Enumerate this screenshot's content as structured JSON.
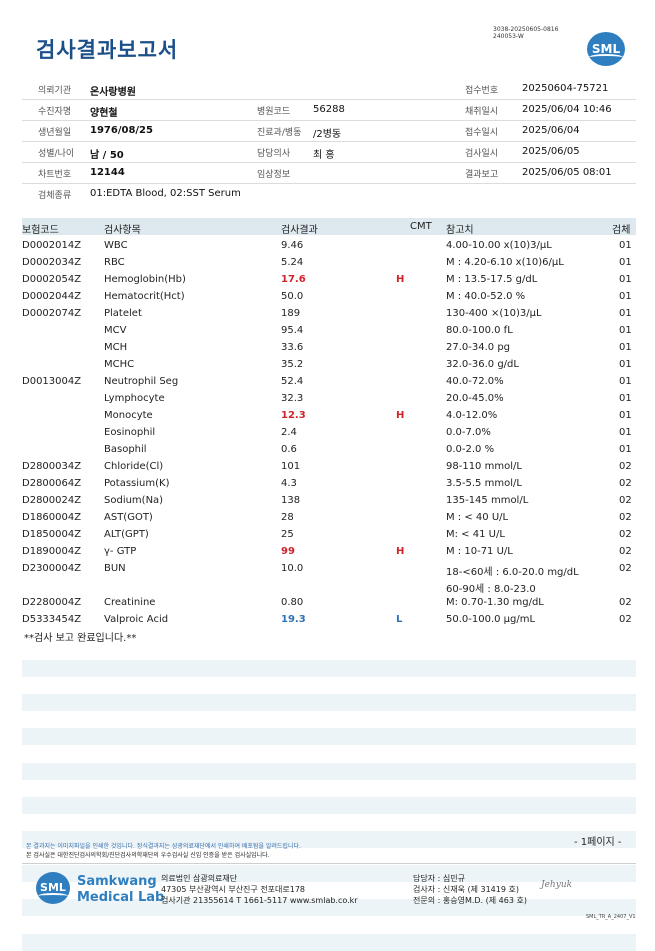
{
  "header": {
    "title": "검사결과보고서",
    "code_line1": "3038-20250605-0816",
    "code_line2": "240053-W",
    "logo_text": "SML"
  },
  "patient": {
    "institution_label": "의뢰기관",
    "institution": "온사랑병원",
    "receipt_no_label": "접수번호",
    "receipt_no": "20250604-75721",
    "name_label": "수진자명",
    "name": "양현철",
    "hospital_code_label": "병원코드",
    "hospital_code": "56288",
    "collect_date_label": "채취일시",
    "collect_date": "2025/06/04 10:46",
    "birth_label": "생년월일",
    "birth": "1976/08/25",
    "dept_label": "진료과/병동",
    "dept": "/2병동",
    "receipt_date_label": "접수일시",
    "receipt_date": "2025/06/04",
    "sex_age_label": "성별/나이",
    "sex_age": "남 / 50",
    "doctor_label": "담당의사",
    "doctor": "최 홍",
    "exam_date_label": "검사일시",
    "exam_date": "2025/06/05",
    "chart_label": "차트번호",
    "chart": "12144",
    "clinical_label": "임상정보",
    "clinical": "",
    "report_date_label": "결과보고",
    "report_date": "2025/06/05 08:01",
    "specimen_label": "검체종류",
    "specimen": "01:EDTA Blood, 02:SST Serum"
  },
  "table": {
    "headers": {
      "code": "보험코드",
      "name": "검사항목",
      "result": "검사결과",
      "cmt": "CMT",
      "ref": "참고치",
      "spec": "검체"
    },
    "rows": [
      {
        "code": "D0002014Z",
        "name": "WBC",
        "result": "9.46",
        "cmt": "",
        "ref": "4.00-10.00 x(10)3/μL",
        "spec": "01"
      },
      {
        "code": "D0002034Z",
        "name": "RBC",
        "result": "5.24",
        "cmt": "",
        "ref": "M : 4.20-6.10 x(10)6/μL",
        "spec": "01"
      },
      {
        "code": "D0002054Z",
        "name": "Hemoglobin(Hb)",
        "result": "17.6",
        "cmt": "H",
        "ref": "M : 13.5-17.5 g/dL",
        "spec": "01"
      },
      {
        "code": "D0002044Z",
        "name": "Hematocrit(Hct)",
        "result": "50.0",
        "cmt": "",
        "ref": "M : 40.0-52.0 %",
        "spec": "01"
      },
      {
        "code": "D0002074Z",
        "name": "Platelet",
        "result": "189",
        "cmt": "",
        "ref": "130-400 ×(10)3/μL",
        "spec": "01"
      },
      {
        "code": "",
        "name": "MCV",
        "result": "95.4",
        "cmt": "",
        "ref": "80.0-100.0 fL",
        "spec": "01"
      },
      {
        "code": "",
        "name": "MCH",
        "result": "33.6",
        "cmt": "",
        "ref": "27.0-34.0 pg",
        "spec": "01"
      },
      {
        "code": "",
        "name": "MCHC",
        "result": "35.2",
        "cmt": "",
        "ref": "32.0-36.0 g/dL",
        "spec": "01"
      },
      {
        "code": "D0013004Z",
        "name": "Neutrophil Seg",
        "result": "52.4",
        "cmt": "",
        "ref": "40.0-72.0%",
        "spec": "01"
      },
      {
        "code": "",
        "name": "Lymphocyte",
        "result": "32.3",
        "cmt": "",
        "ref": "20.0-45.0%",
        "spec": "01"
      },
      {
        "code": "",
        "name": "Monocyte",
        "result": "12.3",
        "cmt": "H",
        "ref": "4.0-12.0%",
        "spec": "01"
      },
      {
        "code": "",
        "name": "Eosinophil",
        "result": "2.4",
        "cmt": "",
        "ref": "0.0-7.0%",
        "spec": "01"
      },
      {
        "code": "",
        "name": "Basophil",
        "result": "0.6",
        "cmt": "",
        "ref": "0.0-2.0 %",
        "spec": "01"
      },
      {
        "code": "D2800034Z",
        "name": "Chloride(Cl)",
        "result": "101",
        "cmt": "",
        "ref": "98-110 mmol/L",
        "spec": "02"
      },
      {
        "code": "D2800064Z",
        "name": "Potassium(K)",
        "result": "4.3",
        "cmt": "",
        "ref": "3.5-5.5 mmol/L",
        "spec": "02"
      },
      {
        "code": "D2800024Z",
        "name": "Sodium(Na)",
        "result": "138",
        "cmt": "",
        "ref": "135-145 mmol/L",
        "spec": "02"
      },
      {
        "code": "D1860004Z",
        "name": "AST(GOT)",
        "result": "28",
        "cmt": "",
        "ref": "M : < 40 U/L",
        "spec": "02"
      },
      {
        "code": "D1850004Z",
        "name": "ALT(GPT)",
        "result": "25",
        "cmt": "",
        "ref": "M: < 41 U/L",
        "spec": "02"
      },
      {
        "code": "D1890004Z",
        "name": "γ- GTP",
        "result": "99",
        "cmt": "H",
        "ref": "M : 10-71 U/L",
        "spec": "02"
      },
      {
        "code": "D2300004Z",
        "name": "BUN",
        "result": "10.0",
        "cmt": "",
        "ref": "18-<60세 : 6.0-20.0 mg/dL",
        "spec": "02"
      },
      {
        "code": "",
        "name": "",
        "result": "",
        "cmt": "",
        "ref": "60-90세 : 8.0-23.0",
        "spec": ""
      },
      {
        "code": "D2280004Z",
        "name": "Creatinine",
        "result": "0.80",
        "cmt": "",
        "ref": "M: 0.70-1.30 mg/dL",
        "spec": "02"
      },
      {
        "code": "D5333454Z",
        "name": "Valproic Acid",
        "result": "19.3",
        "cmt": "L",
        "ref": "50.0-100.0 μg/mL",
        "spec": "02"
      }
    ],
    "complete_text": "**검사 보고 완료입니다.**"
  },
  "footer": {
    "page": "- 1페이지 -",
    "note1": "본 결과지는 이미지파일을 인쇄한 것입니다. 정식결과지는 삼광의료재단에서 인쇄하여 배포됨을 알려드립니다.",
    "note2": "본 검사실은 대한진단검사의학회/진단검사의학재단의 우수검사실 신임 인증을 받은 검사실입니다.",
    "brand_line1": "Samkwang",
    "brand_line2": "Medical Lab",
    "logo_text": "SML",
    "addr1": "의료법인 삼광의료재단",
    "addr2": "47305 부산광역시 부산진구 전포대로178",
    "addr3": "검사기관 21355614 T 1661-5117 www.smlab.co.kr",
    "staff1": "담당자 : 심민규",
    "staff2": "검사자 : 신재욱 (제 31419 호)",
    "staff3": "전문의 : 홍승영M.D. (제 463 호)",
    "signature": "Jehyuk",
    "form_code": "SML_TR_A_2407_V1"
  }
}
